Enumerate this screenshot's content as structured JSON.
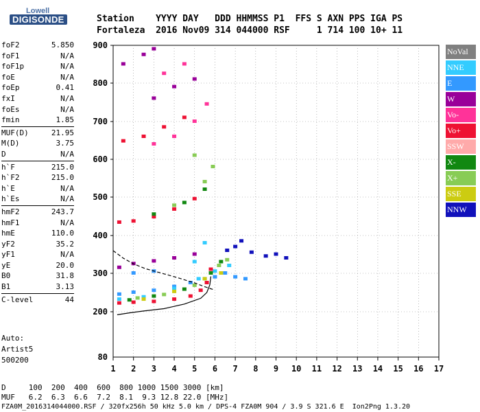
{
  "logo": {
    "brand": "Lowell",
    "product": "DIGISONDE"
  },
  "header": {
    "line1": "Station    YYYY DAY   DDD HHMMSS P1  FFS S AXN PPS IGA PS",
    "line2": "Fortaleza  2016 Nov09 314 044000 RSF     1 714 100 10+ 11"
  },
  "params": [
    {
      "group": 1,
      "key": "foF2",
      "value": "5.850"
    },
    {
      "group": 1,
      "key": "foF1",
      "value": "N/A"
    },
    {
      "group": 1,
      "key": "foF1p",
      "value": "N/A"
    },
    {
      "group": 1,
      "key": "foE",
      "value": "N/A"
    },
    {
      "group": 1,
      "key": "foEp",
      "value": "0.41"
    },
    {
      "group": 1,
      "key": "fxI",
      "value": "N/A"
    },
    {
      "group": 1,
      "key": "foEs",
      "value": "N/A"
    },
    {
      "group": 1,
      "key": "fmin",
      "value": "1.85"
    },
    {
      "group": 2,
      "key": "MUF(D)",
      "value": "21.95"
    },
    {
      "group": 2,
      "key": "M(D)",
      "value": "3.75"
    },
    {
      "group": 2,
      "key": "D",
      "value": "N/A"
    },
    {
      "group": 3,
      "key": "h`F",
      "value": "215.0"
    },
    {
      "group": 3,
      "key": "h`F2",
      "value": "215.0"
    },
    {
      "group": 3,
      "key": "h`E",
      "value": "N/A"
    },
    {
      "group": 3,
      "key": "h`Es",
      "value": "N/A"
    },
    {
      "group": 4,
      "key": "hmF2",
      "value": "243.7"
    },
    {
      "group": 4,
      "key": "hmF1",
      "value": "N/A"
    },
    {
      "group": 4,
      "key": "hmE",
      "value": "110.0"
    },
    {
      "group": 4,
      "key": "yF2",
      "value": "35.2"
    },
    {
      "group": 4,
      "key": "yF1",
      "value": "N/A"
    },
    {
      "group": 4,
      "key": "yE",
      "value": "20.0"
    },
    {
      "group": 4,
      "key": "B0",
      "value": "31.8"
    },
    {
      "group": 4,
      "key": "B1",
      "value": "3.13"
    },
    {
      "group": 5,
      "key": "C-level",
      "value": "44"
    }
  ],
  "autoscale": {
    "line1": "Auto:",
    "line2": "Artist5",
    "line3": "500200"
  },
  "footer": {
    "d_row": "D     100  200  400  600  800 1000 1500 3000 [km]",
    "muf_row": "MUF   6.2  6.3  6.6  7.2  8.1  9.3 12.8 22.0 [MHz]",
    "info": "FZA0M_2016314044000.RSF / 320fx256h 50 kHz 5.0 km / DPS-4 FZA0M 904 / 3.9 S 321.6 E  Ion2Png 1.3.20"
  },
  "legend": [
    {
      "label": "NoVal",
      "color": "#808080"
    },
    {
      "label": "NNE",
      "color": "#33ccff"
    },
    {
      "label": "E",
      "color": "#3399ff"
    },
    {
      "label": "W",
      "color": "#990099"
    },
    {
      "label": "Vo-",
      "color": "#ff3399"
    },
    {
      "label": "Vo+",
      "color": "#ee1133"
    },
    {
      "label": "SSW",
      "color": "#ffaaaa"
    },
    {
      "label": "X-",
      "color": "#118811"
    },
    {
      "label": "X+",
      "color": "#88cc55"
    },
    {
      "label": "SSE",
      "color": "#cccc11"
    },
    {
      "label": "NNW",
      "color": "#1111bb"
    }
  ],
  "chart_data": {
    "type": "scatter",
    "title": "",
    "xlabel": "",
    "ylabel": "",
    "xlim": [
      1,
      17
    ],
    "ylim": [
      80,
      900
    ],
    "y_scale": "non-linear (virtual height)",
    "x_ticks": [
      1,
      2,
      3,
      4,
      5,
      6,
      7,
      8,
      9,
      10,
      11,
      12,
      13,
      14,
      15,
      16,
      17
    ],
    "y_ticks": [
      200,
      300,
      400,
      500,
      600,
      700,
      800,
      900
    ],
    "y_bottom_label": "80",
    "grid": "dotted",
    "series": [
      {
        "name": "Vo+",
        "points": [
          [
            1.3,
            222
          ],
          [
            2.0,
            224
          ],
          [
            3.0,
            226
          ],
          [
            4.0,
            232
          ],
          [
            4.8,
            240
          ],
          [
            5.3,
            255
          ],
          [
            5.6,
            275
          ],
          [
            5.8,
            310
          ],
          [
            1.3,
            434
          ],
          [
            2.0,
            437
          ],
          [
            3.0,
            448
          ],
          [
            4.0,
            468
          ],
          [
            5.0,
            495
          ],
          [
            1.5,
            648
          ],
          [
            2.5,
            660
          ],
          [
            3.5,
            685
          ],
          [
            4.5,
            710
          ]
        ]
      },
      {
        "name": "E",
        "points": [
          [
            1.3,
            245
          ],
          [
            2.0,
            250
          ],
          [
            3.0,
            255
          ],
          [
            4.0,
            265
          ],
          [
            4.8,
            275
          ],
          [
            5.5,
            285
          ],
          [
            6.0,
            290
          ],
          [
            6.5,
            300
          ],
          [
            7.0,
            290
          ],
          [
            7.5,
            285
          ],
          [
            2.0,
            300
          ],
          [
            3.0,
            305
          ]
        ]
      },
      {
        "name": "NNE",
        "points": [
          [
            1.3,
            232
          ],
          [
            2.5,
            238
          ],
          [
            4.0,
            260
          ],
          [
            5.2,
            285
          ],
          [
            6.0,
            305
          ],
          [
            6.7,
            320
          ],
          [
            5.0,
            330
          ],
          [
            5.5,
            380
          ]
        ]
      },
      {
        "name": "W",
        "points": [
          [
            1.3,
            315
          ],
          [
            2.0,
            325
          ],
          [
            3.0,
            332
          ],
          [
            4.0,
            340
          ],
          [
            5.0,
            350
          ],
          [
            1.5,
            850
          ],
          [
            2.5,
            875
          ],
          [
            3.0,
            890
          ],
          [
            3.0,
            760
          ],
          [
            4.0,
            790
          ],
          [
            5.0,
            810
          ]
        ]
      },
      {
        "name": "Vo-",
        "points": [
          [
            3.0,
            640
          ],
          [
            4.0,
            660
          ],
          [
            5.0,
            700
          ],
          [
            5.6,
            745
          ],
          [
            3.5,
            825
          ],
          [
            4.5,
            850
          ]
        ]
      },
      {
        "name": "X-",
        "points": [
          [
            1.8,
            230
          ],
          [
            3.0,
            240
          ],
          [
            4.5,
            258
          ],
          [
            5.8,
            300
          ],
          [
            6.3,
            330
          ],
          [
            3.0,
            455
          ],
          [
            4.5,
            485
          ],
          [
            5.5,
            520
          ]
        ]
      },
      {
        "name": "X+",
        "points": [
          [
            2.2,
            235
          ],
          [
            3.5,
            244
          ],
          [
            5.0,
            268
          ],
          [
            6.2,
            320
          ],
          [
            6.6,
            335
          ],
          [
            4.0,
            478
          ],
          [
            5.5,
            540
          ],
          [
            5.9,
            580
          ],
          [
            5.0,
            610
          ]
        ]
      },
      {
        "name": "SSE",
        "points": [
          [
            2.5,
            232
          ],
          [
            4.0,
            252
          ],
          [
            5.5,
            285
          ],
          [
            6.3,
            300
          ]
        ]
      },
      {
        "name": "NNW",
        "points": [
          [
            7.0,
            370
          ],
          [
            7.3,
            385
          ],
          [
            7.8,
            355
          ],
          [
            8.5,
            345
          ],
          [
            9.0,
            350
          ],
          [
            9.5,
            340
          ],
          [
            6.6,
            360
          ]
        ]
      }
    ],
    "traces": [
      {
        "name": "profile",
        "style": "solid",
        "points": [
          [
            1.2,
            192
          ],
          [
            1.8,
            197
          ],
          [
            2.5,
            202
          ],
          [
            3.5,
            208
          ],
          [
            4.5,
            220
          ],
          [
            5.3,
            235
          ],
          [
            5.6,
            250
          ],
          [
            5.75,
            270
          ],
          [
            5.8,
            292
          ]
        ]
      },
      {
        "name": "model-trace",
        "style": "dashed",
        "points": [
          [
            1.0,
            360
          ],
          [
            1.5,
            340
          ],
          [
            2.0,
            325
          ],
          [
            2.6,
            312
          ],
          [
            3.4,
            300
          ],
          [
            4.2,
            288
          ],
          [
            5.0,
            275
          ],
          [
            5.5,
            265
          ],
          [
            5.9,
            258
          ]
        ]
      }
    ]
  }
}
